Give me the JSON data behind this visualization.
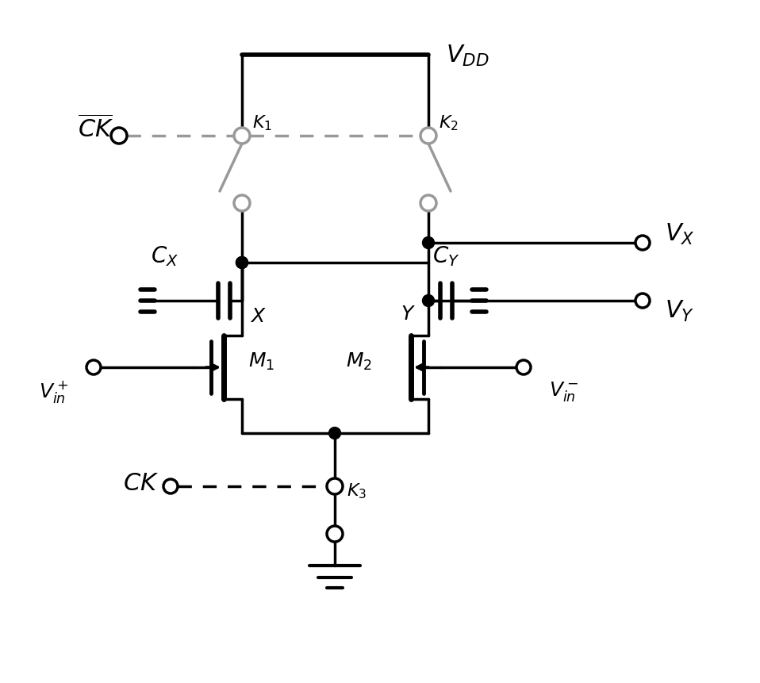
{
  "bg_color": "#ffffff",
  "line_color": "#000000",
  "gray_color": "#999999",
  "lw": 2.5,
  "figsize": [
    9.58,
    8.62
  ],
  "dpi": 100,
  "xA": 3.05,
  "xB": 5.4,
  "xMid": 4.22,
  "yVDD": 7.92,
  "yKtop": 6.9,
  "yKbot": 6.05,
  "yNodeX": 5.3,
  "yVXdot": 5.55,
  "yCapRow": 4.82,
  "yMdrain": 4.38,
  "yMsource": 3.58,
  "ySourceLine": 3.15,
  "yK3top": 2.48,
  "yK3bot": 1.88,
  "yGnd": 1.48,
  "xCKbarL": 1.5,
  "xCKbotL": 2.15,
  "xVXterm": 8.1,
  "xM1chan": 2.82,
  "xM2chan": 5.18
}
